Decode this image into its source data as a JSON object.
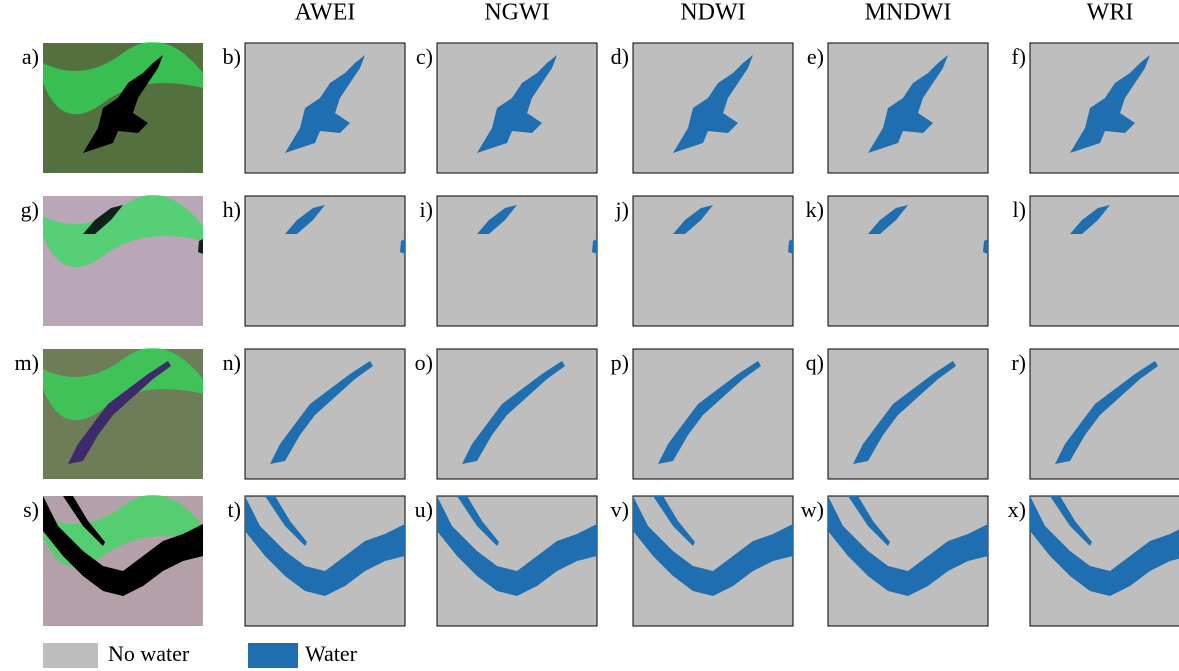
{
  "columns": [
    "AWEI",
    "NGWI",
    "NDWI",
    "MNDWI",
    "WRI"
  ],
  "panels": [
    [
      "a)",
      "b)",
      "c)",
      "d)",
      "e)",
      "f)"
    ],
    [
      "g)",
      "h)",
      "i)",
      "j)",
      "k)",
      "l)"
    ],
    [
      "m)",
      "n)",
      "o)",
      "p)",
      "q)",
      "r)"
    ],
    [
      "s)",
      "t)",
      "u)",
      "v)",
      "w)",
      "x)"
    ]
  ],
  "legend": [
    "No water",
    "Water"
  ]
}
